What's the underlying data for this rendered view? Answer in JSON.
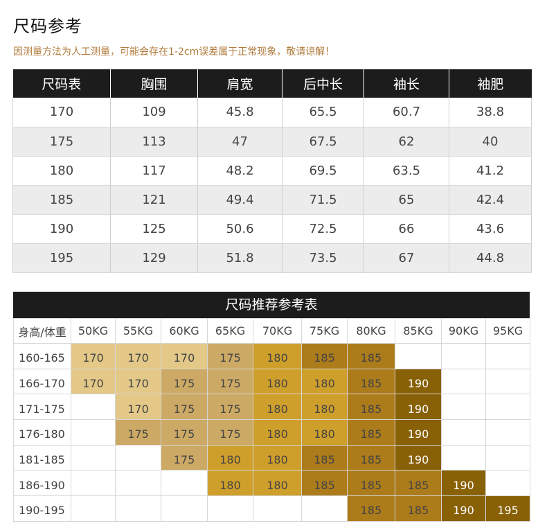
{
  "title": "尺码参考",
  "note": "因测量方法为人工测量，可能会存在1-2cm误差属于正常现象，敬请谅解！",
  "size_table": {
    "headers": [
      "尺码表",
      "胸围",
      "肩宽",
      "后中长",
      "袖长",
      "袖肥"
    ],
    "rows": [
      [
        "170",
        "109",
        "45.8",
        "65.5",
        "60.7",
        "38.8"
      ],
      [
        "175",
        "113",
        "47",
        "67.5",
        "62",
        "40"
      ],
      [
        "180",
        "117",
        "48.2",
        "69.5",
        "63.5",
        "41.2"
      ],
      [
        "185",
        "121",
        "49.4",
        "71.5",
        "65",
        "42.4"
      ],
      [
        "190",
        "125",
        "50.6",
        "72.5",
        "66",
        "43.6"
      ],
      [
        "195",
        "129",
        "51.8",
        "73.5",
        "67",
        "44.8"
      ]
    ]
  },
  "recommend": {
    "title": "尺码推荐参考表",
    "corner": "身高/体重",
    "weights": [
      "50KG",
      "55KG",
      "60KG",
      "65KG",
      "70KG",
      "75KG",
      "80KG",
      "85KG",
      "90KG",
      "95KG"
    ],
    "colors": {
      "170": "#e3c887",
      "175": "#cca964",
      "180": "#cf9f2b",
      "185": "#ac7b1a",
      "190": "#886006",
      "195": "#886006"
    },
    "rows": [
      {
        "height": "160-165",
        "cells": [
          "170",
          "170",
          "170",
          "175",
          "180",
          "185",
          "185",
          "",
          "",
          ""
        ]
      },
      {
        "height": "166-170",
        "cells": [
          "170",
          "170",
          "175",
          "175",
          "180",
          "180",
          "185",
          "190",
          "",
          ""
        ]
      },
      {
        "height": "171-175",
        "cells": [
          "",
          "170",
          "175",
          "175",
          "180",
          "180",
          "185",
          "190",
          "",
          ""
        ]
      },
      {
        "height": "176-180",
        "cells": [
          "",
          "175",
          "175",
          "175",
          "180",
          "180",
          "185",
          "190",
          "",
          ""
        ]
      },
      {
        "height": "181-185",
        "cells": [
          "",
          "",
          "175",
          "180",
          "180",
          "185",
          "185",
          "190",
          "",
          ""
        ]
      },
      {
        "height": "186-190",
        "cells": [
          "",
          "",
          "",
          "180",
          "180",
          "185",
          "185",
          "185",
          "190",
          ""
        ]
      },
      {
        "height": "190-195",
        "cells": [
          "",
          "",
          "",
          "",
          "",
          "",
          "185",
          "185",
          "190",
          "195"
        ]
      }
    ]
  }
}
